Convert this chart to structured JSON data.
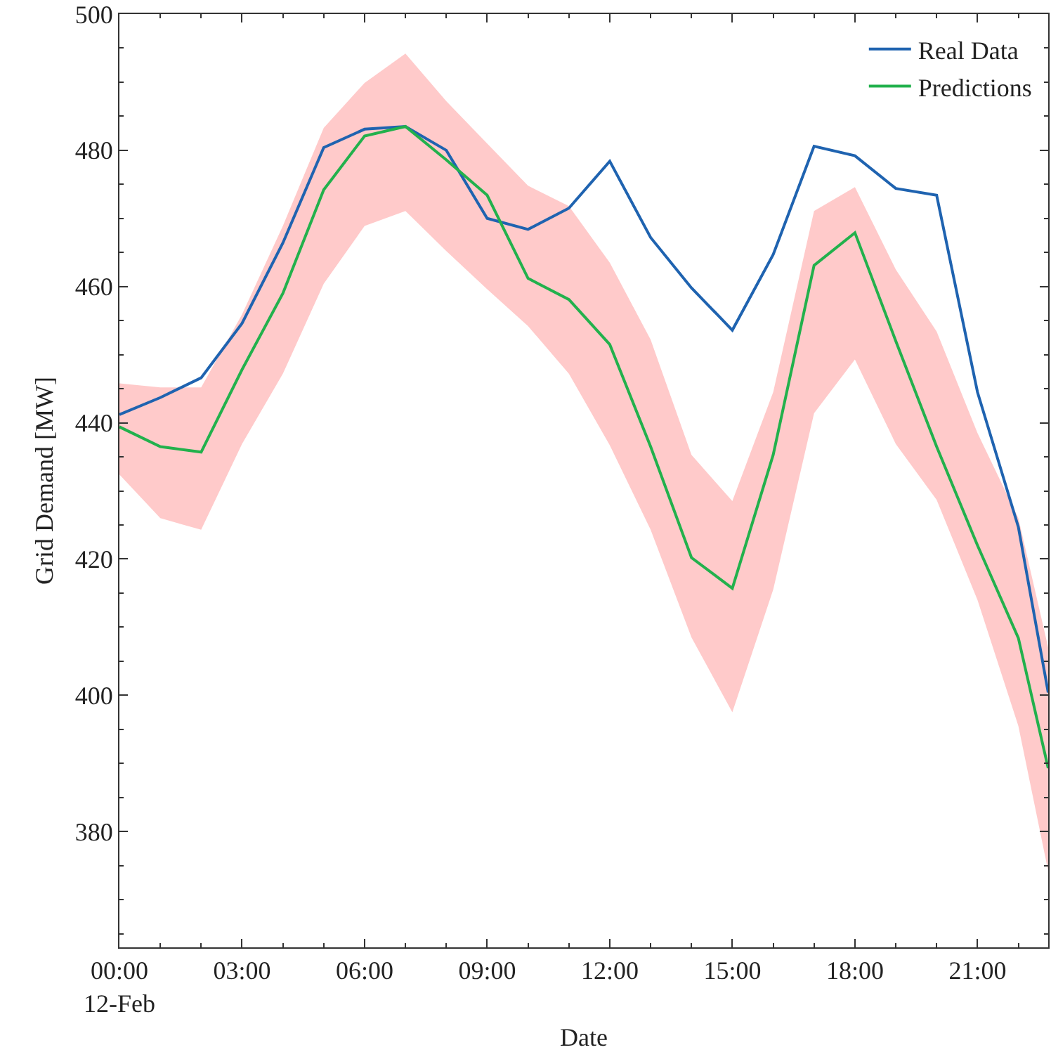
{
  "chart_data": {
    "type": "line",
    "xlabel": "Date",
    "ylabel": "Grid Demand [MW]",
    "x": [
      0,
      1,
      2,
      3,
      4,
      5,
      6,
      7,
      8,
      9,
      10,
      11,
      12,
      13,
      14,
      15,
      16,
      17,
      18,
      19,
      20,
      21,
      22,
      22.73
    ],
    "series": [
      {
        "name": "Real Data",
        "color": "#1f63b0",
        "values": [
          441.2,
          443.7,
          446.6,
          454.6,
          466.4,
          480.4,
          483.1,
          483.5,
          480,
          470,
          468.4,
          471.5,
          478.4,
          467.2,
          459.8,
          453.6,
          464.7,
          480.6,
          479.2,
          474.4,
          473.4,
          444.5,
          424.7,
          400.4
        ]
      },
      {
        "name": "Predictions",
        "color": "#22b14c",
        "values": [
          439.4,
          436.5,
          435.7,
          447.8,
          459,
          474.2,
          482.1,
          483.5,
          478.6,
          473.4,
          461.2,
          458.1,
          451.5,
          436.5,
          420.2,
          415.7,
          435.3,
          463.1,
          467.9,
          452,
          436.5,
          422,
          408.4,
          389.3
        ],
        "lower": [
          432.4,
          426,
          424.3,
          436.9,
          447.2,
          460.4,
          468.9,
          471.1,
          465.2,
          459.6,
          454.2,
          447.2,
          436.7,
          424.3,
          408.5,
          397.5,
          415.5,
          441.4,
          449.3,
          436.9,
          428.7,
          414,
          395.5,
          374.2
        ],
        "upper": [
          445.8,
          445.2,
          445.2,
          455.9,
          468.9,
          483.3,
          489.9,
          494.2,
          487.2,
          481,
          474.8,
          471.8,
          463.5,
          452.2,
          435.3,
          428.5,
          444.5,
          471.1,
          474.6,
          462.5,
          453.4,
          438.5,
          426,
          407
        ]
      }
    ],
    "xlim": [
      0,
      22.73
    ],
    "xticks": [
      {
        "value": 0,
        "label": "00:00\n12-Feb"
      },
      {
        "value": 3,
        "label": "03:00"
      },
      {
        "value": 6,
        "label": "06:00"
      },
      {
        "value": 9,
        "label": "09:00"
      },
      {
        "value": 12,
        "label": "12:00"
      },
      {
        "value": 15,
        "label": "15:00"
      },
      {
        "value": 18,
        "label": "18:00"
      },
      {
        "value": 21,
        "label": "21:00"
      }
    ],
    "ylim": [
      363,
      500
    ],
    "yticks": [
      380,
      400,
      420,
      440,
      460,
      480,
      500
    ],
    "grid": false,
    "legend": "top right",
    "line_style": "solid",
    "marker": "none"
  }
}
